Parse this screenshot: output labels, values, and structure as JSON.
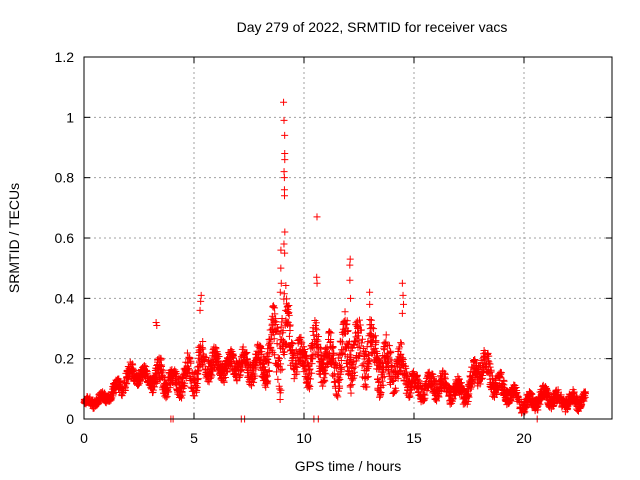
{
  "chart_data": {
    "type": "scatter",
    "title": "Day 279 of 2022, SRMTID for receiver vacs",
    "xlabel": "GPS time / hours",
    "ylabel": "SRMTID / TECUs",
    "xlim": [
      0,
      24
    ],
    "ylim": [
      0,
      1.2
    ],
    "grid": true,
    "marker": "+",
    "color": "#ff0000",
    "x_ticks": [
      0,
      5,
      10,
      15,
      20
    ],
    "x_tick_labels": [
      "0",
      "5",
      "10",
      "15",
      "20"
    ],
    "y_ticks": [
      0,
      0.2,
      0.4,
      0.6,
      0.8,
      1.0,
      1.2
    ],
    "y_tick_labels": [
      "0",
      "0.2",
      "0.4",
      "0.6",
      "0.8",
      "1",
      "1.2"
    ],
    "profile": {
      "description": "approximate envelope of the point cloud (hour, median TECU)",
      "hours": [
        0,
        0.5,
        1,
        1.5,
        2,
        2.5,
        3,
        3.5,
        4,
        4.5,
        5,
        5.5,
        6,
        6.5,
        7,
        7.5,
        8,
        8.5,
        9,
        9.5,
        10,
        10.5,
        11,
        11.5,
        12,
        12.5,
        13,
        13.5,
        14,
        14.5,
        15,
        15.5,
        16,
        16.5,
        17,
        17.5,
        18,
        18.5,
        19,
        19.5,
        20,
        20.5,
        21,
        21.5,
        22,
        22.5,
        22.8
      ],
      "values": [
        0.05,
        0.06,
        0.07,
        0.1,
        0.14,
        0.15,
        0.13,
        0.14,
        0.12,
        0.13,
        0.16,
        0.19,
        0.18,
        0.17,
        0.19,
        0.17,
        0.18,
        0.22,
        0.28,
        0.24,
        0.18,
        0.22,
        0.2,
        0.18,
        0.24,
        0.21,
        0.22,
        0.18,
        0.17,
        0.16,
        0.11,
        0.1,
        0.12,
        0.1,
        0.09,
        0.09,
        0.2,
        0.14,
        0.1,
        0.08,
        0.05,
        0.06,
        0.08,
        0.06,
        0.06,
        0.06,
        0.07
      ],
      "spread": [
        0.02,
        0.02,
        0.02,
        0.03,
        0.04,
        0.03,
        0.03,
        0.06,
        0.04,
        0.05,
        0.08,
        0.06,
        0.05,
        0.04,
        0.05,
        0.05,
        0.06,
        0.1,
        0.18,
        0.08,
        0.06,
        0.1,
        0.07,
        0.09,
        0.12,
        0.1,
        0.1,
        0.09,
        0.08,
        0.07,
        0.04,
        0.04,
        0.05,
        0.04,
        0.04,
        0.04,
        0.07,
        0.05,
        0.04,
        0.03,
        0.03,
        0.03,
        0.03,
        0.03,
        0.03,
        0.03,
        0.02
      ]
    },
    "spikes": [
      {
        "x": 9.1,
        "values": [
          1.05,
          0.99,
          0.94,
          0.88,
          0.86,
          0.82,
          0.8,
          0.76,
          0.74,
          0.62,
          0.58,
          0.55
        ]
      },
      {
        "x": 8.95,
        "values": [
          0.56,
          0.5,
          0.45,
          0.42
        ]
      },
      {
        "x": 10.6,
        "values": [
          0.67,
          0.47,
          0.45
        ]
      },
      {
        "x": 12.1,
        "values": [
          0.53,
          0.51,
          0.46,
          0.4
        ]
      },
      {
        "x": 14.5,
        "values": [
          0.45,
          0.41,
          0.38,
          0.35
        ]
      },
      {
        "x": 5.3,
        "values": [
          0.41,
          0.39,
          0.36
        ]
      },
      {
        "x": 3.3,
        "values": [
          0.32,
          0.31
        ]
      },
      {
        "x": 13.0,
        "values": [
          0.42,
          0.38,
          0.33
        ]
      }
    ],
    "zero_points": [
      3.95,
      4.05,
      7.15,
      7.3,
      10.45,
      10.65,
      20.6
    ]
  }
}
